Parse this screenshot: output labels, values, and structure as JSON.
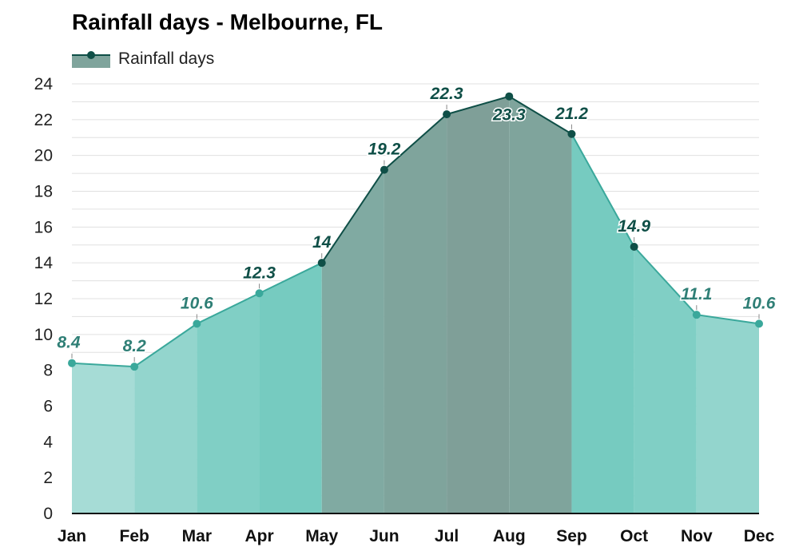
{
  "title": "Rainfall days - Melbourne, FL",
  "legend": {
    "label": "Rainfall days"
  },
  "colors": {
    "line_dark": "#0f4f47",
    "line_light": "#3aa89b",
    "grid": "#e0e0e0",
    "axis": "#111111"
  },
  "chart_data": {
    "type": "area",
    "categories": [
      "Jan",
      "Feb",
      "Mar",
      "Apr",
      "May",
      "Jun",
      "Jul",
      "Aug",
      "Sep",
      "Oct",
      "Nov",
      "Dec"
    ],
    "series": [
      {
        "name": "Rainfall days",
        "values": [
          8.4,
          8.2,
          10.6,
          12.3,
          14,
          19.2,
          22.3,
          23.3,
          21.2,
          14.9,
          11.1,
          10.6
        ],
        "labels": [
          "8.4",
          "8.2",
          "10.6",
          "12.3",
          "14",
          "19.2",
          "22.3",
          "23.3",
          "21.2",
          "14.9",
          "11.1",
          "10.6"
        ]
      }
    ],
    "ylim": [
      0,
      24
    ],
    "yticks": [
      0,
      2,
      4,
      6,
      8,
      10,
      12,
      14,
      16,
      18,
      20,
      22,
      24
    ],
    "grid": true,
    "legend_position": "top-left",
    "band_fills": [
      "#a6dcd6",
      "#93d5cd",
      "#80cfc5",
      "#76cbc0",
      "#80aaa2",
      "#7fa49c",
      "#7f9f98",
      "#7fa49c",
      "#76cbc0",
      "#80cfc5",
      "#93d5cd",
      "#93d5cd"
    ]
  }
}
